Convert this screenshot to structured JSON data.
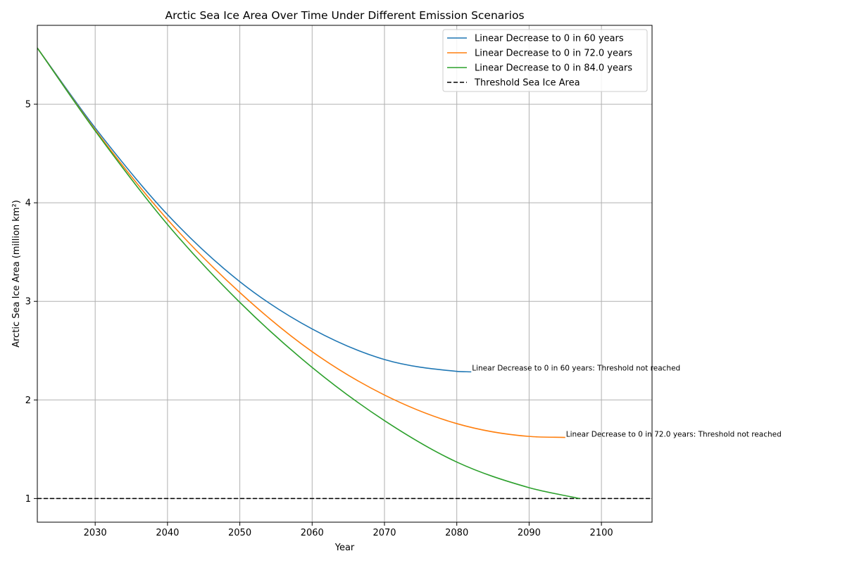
{
  "chart_data": {
    "type": "line",
    "title": "Arctic Sea Ice Area Over Time Under Different Emission Scenarios",
    "xlabel": "Year",
    "ylabel": "Arctic Sea Ice Area (million km²)",
    "xlim": [
      2022,
      2107
    ],
    "ylim": [
      0.76,
      5.8
    ],
    "xticks": [
      2030,
      2040,
      2050,
      2060,
      2070,
      2080,
      2090,
      2100
    ],
    "yticks": [
      1,
      2,
      3,
      4,
      5
    ],
    "grid": true,
    "legend_position": "top-right",
    "series": [
      {
        "name": "Linear Decrease to 0 in 60 years",
        "color": "#1f77b4",
        "x": [
          2022,
          2030,
          2040,
          2050,
          2060,
          2070,
          2080,
          2082
        ],
        "y": [
          5.57,
          4.76,
          3.88,
          3.2,
          2.72,
          2.41,
          2.29,
          2.285
        ]
      },
      {
        "name": "Linear Decrease to 0 in 72.0 years",
        "color": "#ff7f0e",
        "x": [
          2022,
          2030,
          2040,
          2050,
          2060,
          2070,
          2080,
          2090,
          2095
        ],
        "y": [
          5.57,
          4.74,
          3.83,
          3.09,
          2.49,
          2.05,
          1.76,
          1.63,
          1.62
        ]
      },
      {
        "name": "Linear Decrease to 0 in 84.0 years",
        "color": "#2ca02c",
        "x": [
          2022,
          2030,
          2040,
          2050,
          2060,
          2070,
          2080,
          2090,
          2097
        ],
        "y": [
          5.57,
          4.73,
          3.78,
          2.99,
          2.33,
          1.79,
          1.37,
          1.11,
          1.0
        ]
      }
    ],
    "threshold": {
      "name": "Threshold Sea Ice Area",
      "value": 1,
      "color": "#000000",
      "style": "dashed"
    },
    "annotations": [
      {
        "text": "Linear Decrease to 0 in 60 years: Threshold not reached",
        "x": 2082.1,
        "y": 2.29
      },
      {
        "text": "Linear Decrease to 0 in 72.0 years: Threshold not reached",
        "x": 2095.1,
        "y": 1.62
      }
    ]
  }
}
